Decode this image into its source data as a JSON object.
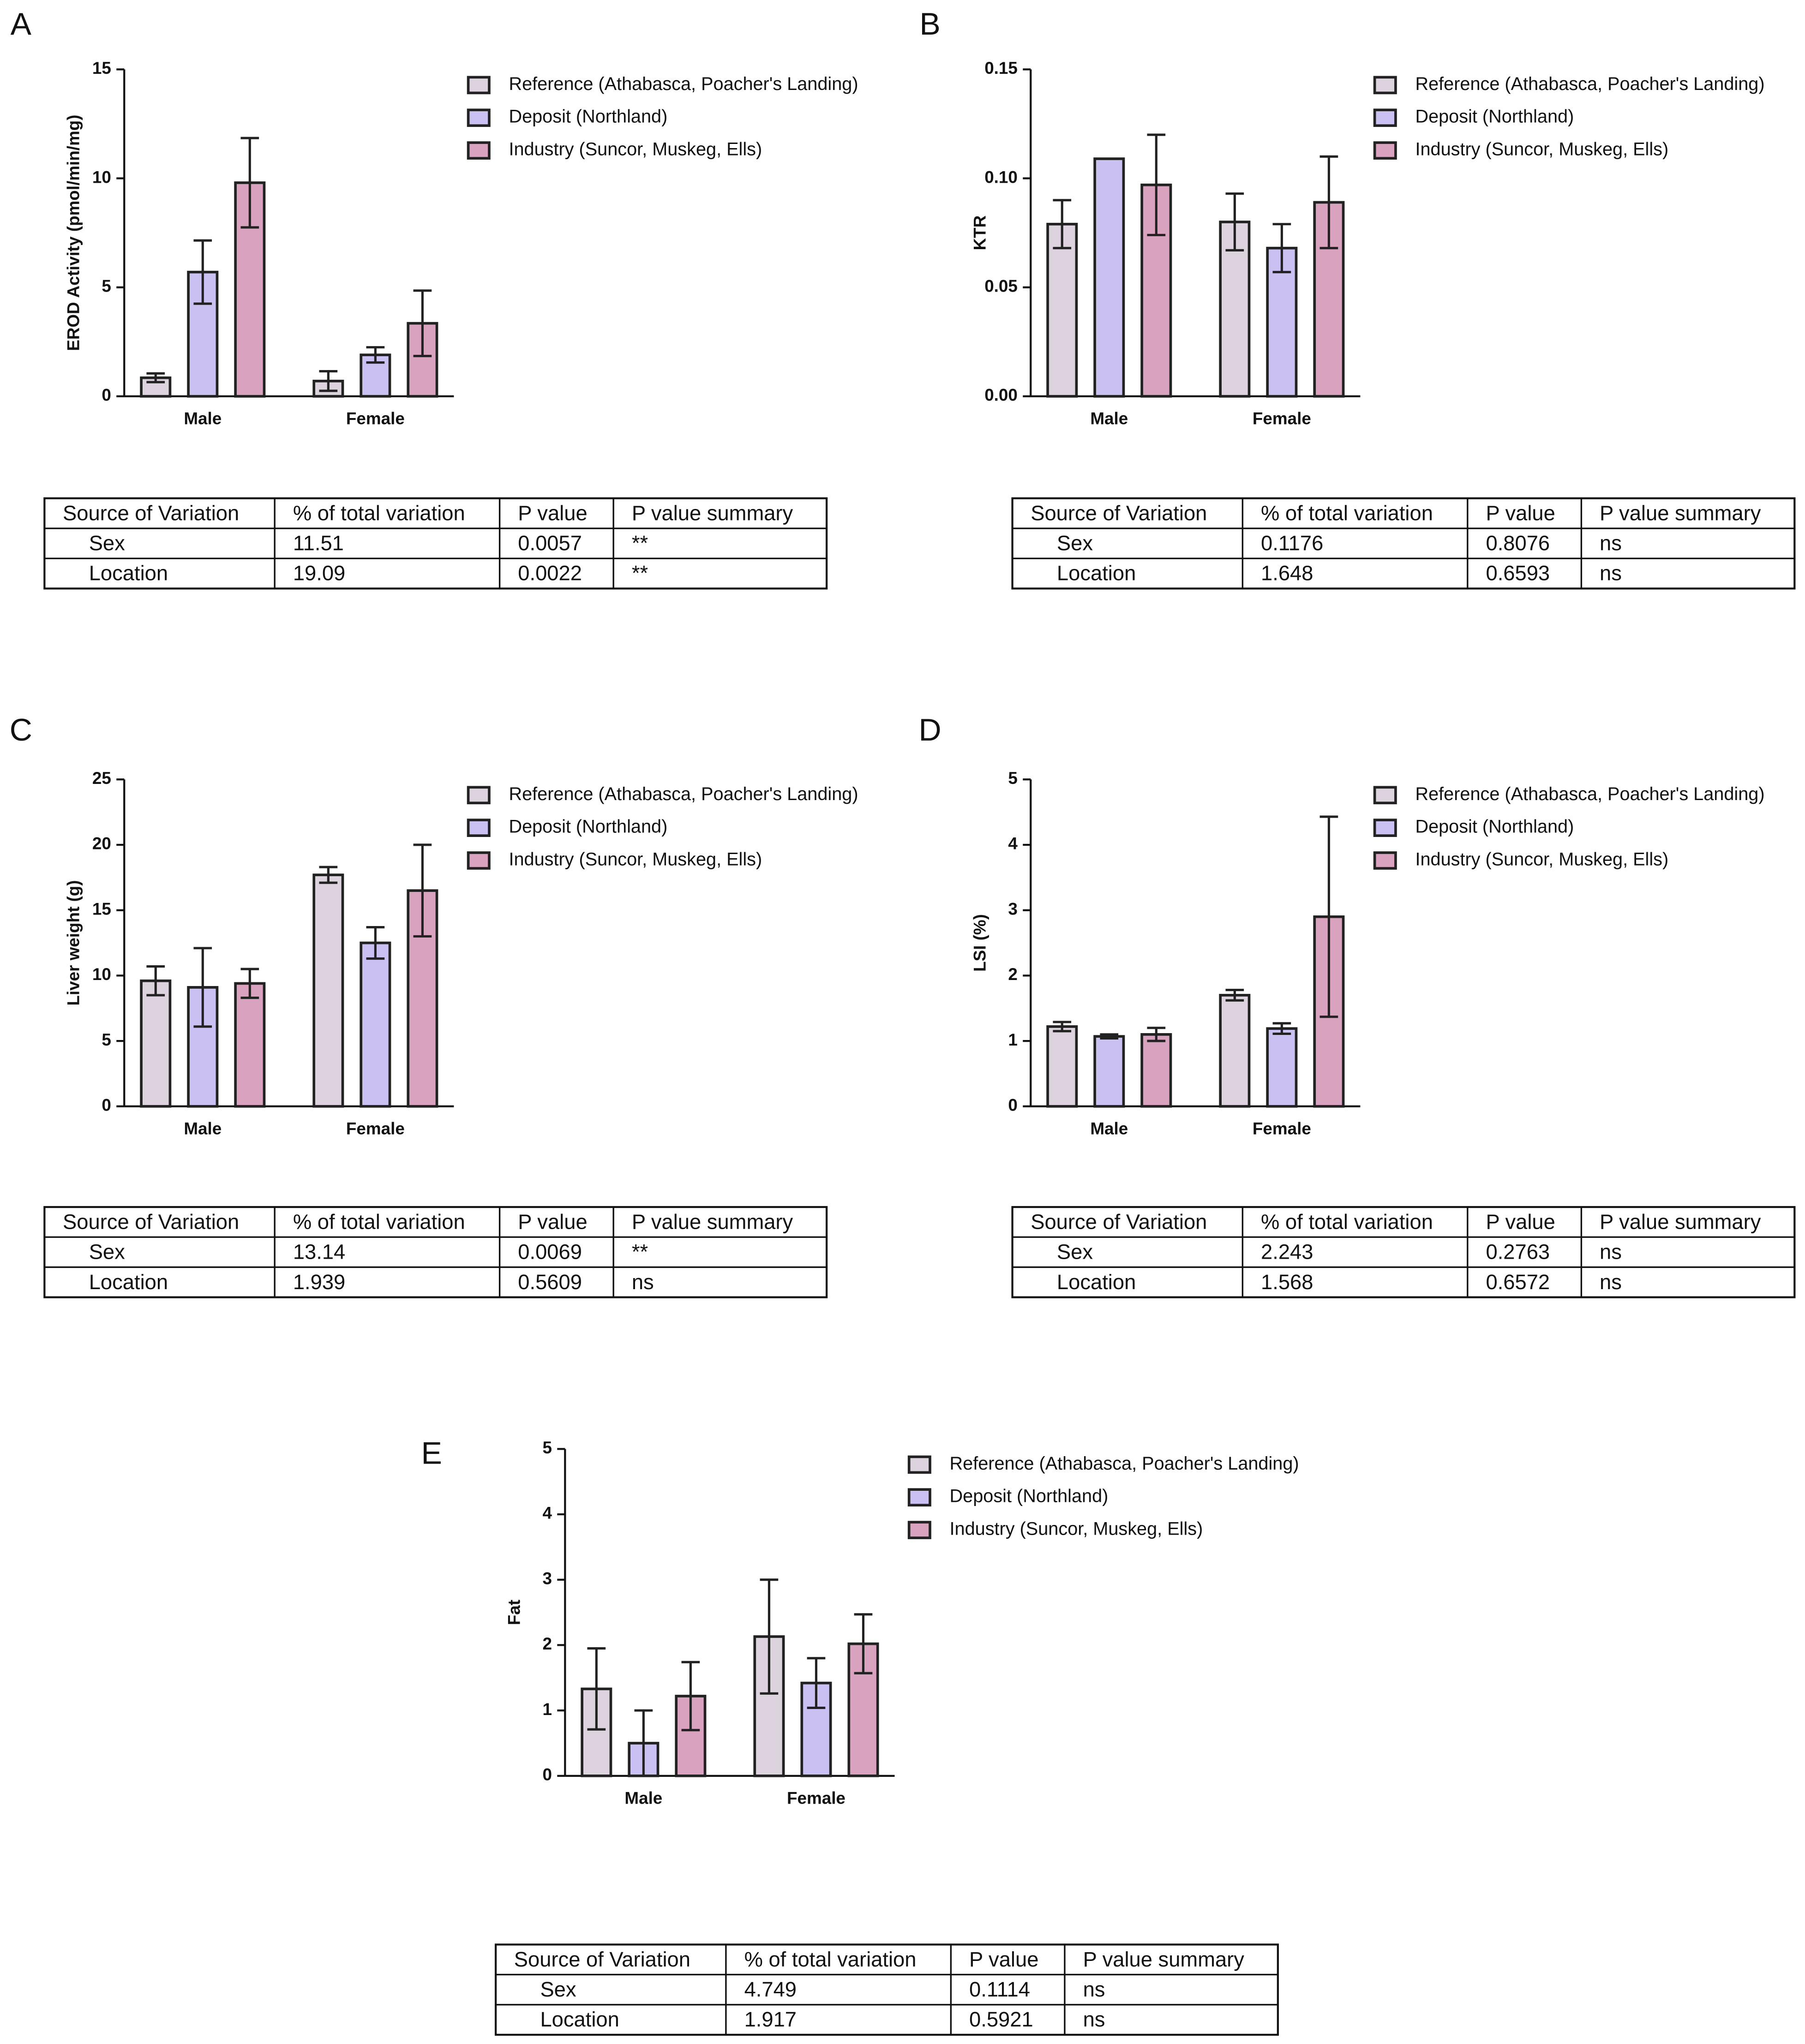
{
  "chart_data": [
    {
      "type": "bar",
      "label": "A",
      "ylabel": "EROD Activity (pmol/min/mg)",
      "categories": [
        "Male",
        "Female"
      ],
      "ylim": [
        0,
        15
      ],
      "yticks": [
        0,
        5,
        10,
        15
      ],
      "series": [
        {
          "name": "Reference (Athabasca, Poacher's Landing)",
          "color": "#ddd3df",
          "values": [
            0.85,
            0.7
          ],
          "errors": [
            0.2,
            0.45
          ]
        },
        {
          "name": "Deposit (Northland)",
          "color": "#cbc0f2",
          "values": [
            5.7,
            1.9
          ],
          "errors": [
            1.45,
            0.35
          ]
        },
        {
          "name": "Industry (Suncor, Muskeg, Ells)",
          "color": "#d9a3c0",
          "values": [
            9.8,
            3.35
          ],
          "errors": [
            2.05,
            1.5
          ]
        }
      ]
    },
    {
      "type": "bar",
      "label": "B",
      "ylabel": "KTR",
      "categories": [
        "Male",
        "Female"
      ],
      "ylim": [
        0,
        0.15
      ],
      "yticks": [
        {
          "value": 0,
          "label": "0.00"
        },
        {
          "value": 0.05,
          "label": "0.05"
        },
        {
          "value": 0.1,
          "label": "0.10"
        },
        {
          "value": 0.15,
          "label": "0.15"
        }
      ],
      "series": [
        {
          "name": "Reference (Athabasca, Poacher's Landing)",
          "color": "#ddd3df",
          "values": [
            0.079,
            0.08
          ],
          "errors": [
            0.011,
            0.013
          ]
        },
        {
          "name": "Deposit (Northland)",
          "color": "#cbc0f2",
          "values": [
            0.109,
            0.068
          ],
          "errors": [
            0,
            0.011
          ]
        },
        {
          "name": "Industry (Suncor, Muskeg, Ells)",
          "color": "#d9a3c0",
          "values": [
            0.097,
            0.089
          ],
          "errors": [
            0.023,
            0.021
          ]
        }
      ]
    },
    {
      "type": "bar",
      "label": "C",
      "ylabel": "Liver weight (g)",
      "categories": [
        "Male",
        "Female"
      ],
      "ylim": [
        0,
        25
      ],
      "yticks": [
        0,
        5,
        10,
        15,
        20,
        25
      ],
      "series": [
        {
          "name": "Reference (Athabasca, Poacher's Landing)",
          "color": "#ddd3df",
          "values": [
            9.6,
            17.7
          ],
          "errors": [
            1.1,
            0.6
          ]
        },
        {
          "name": "Deposit (Northland)",
          "color": "#cbc0f2",
          "values": [
            9.1,
            12.5
          ],
          "errors": [
            3.0,
            1.2
          ]
        },
        {
          "name": "Industry (Suncor, Muskeg, Ells)",
          "color": "#d9a3c0",
          "values": [
            9.4,
            16.5
          ],
          "errors": [
            1.1,
            3.5
          ]
        }
      ]
    },
    {
      "type": "bar",
      "label": "D",
      "ylabel": "LSI (%)",
      "categories": [
        "Male",
        "Female"
      ],
      "ylim": [
        0,
        5
      ],
      "yticks": [
        0,
        1,
        2,
        3,
        4,
        5
      ],
      "series": [
        {
          "name": "Reference (Athabasca, Poacher's Landing)",
          "color": "#ddd3df",
          "values": [
            1.22,
            1.7
          ],
          "errors": [
            0.07,
            0.08
          ]
        },
        {
          "name": "Deposit (Northland)",
          "color": "#cbc0f2",
          "values": [
            1.07,
            1.19
          ],
          "errors": [
            0.03,
            0.08
          ]
        },
        {
          "name": "Industry (Suncor, Muskeg, Ells)",
          "color": "#d9a3c0",
          "values": [
            1.1,
            2.9
          ],
          "errors": [
            0.1,
            1.53
          ]
        }
      ]
    },
    {
      "type": "bar",
      "label": "E",
      "ylabel": "Fat",
      "categories": [
        "Male",
        "Female"
      ],
      "ylim": [
        0,
        5
      ],
      "yticks": [
        0,
        1,
        2,
        3,
        4,
        5
      ],
      "series": [
        {
          "name": "Reference (Athabasca, Poacher's Landing)",
          "color": "#ddd3df",
          "values": [
            1.33,
            2.13
          ],
          "errors": [
            0.62,
            0.87
          ]
        },
        {
          "name": "Deposit (Northland)",
          "color": "#cbc0f2",
          "values": [
            0.5,
            1.42
          ],
          "errors": [
            0.5,
            0.38
          ]
        },
        {
          "name": "Industry (Suncor, Muskeg, Ells)",
          "color": "#d9a3c0",
          "values": [
            1.22,
            2.02
          ],
          "errors": [
            0.52,
            0.45
          ]
        }
      ]
    }
  ],
  "tables": [
    {
      "header": [
        "Source of Variation",
        "% of total variation",
        "P value",
        "P value summary"
      ],
      "rows": [
        [
          "Sex",
          "11.51",
          "0.0057",
          "**"
        ],
        [
          "Location",
          "19.09",
          "0.0022",
          "**"
        ]
      ]
    },
    {
      "header": [
        "Source of Variation",
        "% of total variation",
        "P value",
        "P value summary"
      ],
      "rows": [
        [
          "Sex",
          "0.1176",
          "0.8076",
          "ns"
        ],
        [
          "Location",
          "1.648",
          "0.6593",
          "ns"
        ]
      ]
    },
    {
      "header": [
        "Source of Variation",
        "% of total variation",
        "P value",
        "P value summary"
      ],
      "rows": [
        [
          "Sex",
          "13.14",
          "0.0069",
          "**"
        ],
        [
          "Location",
          "1.939",
          "0.5609",
          "ns"
        ]
      ]
    },
    {
      "header": [
        "Source of Variation",
        "% of total variation",
        "P value",
        "P value summary"
      ],
      "rows": [
        [
          "Sex",
          "2.243",
          "0.2763",
          "ns"
        ],
        [
          "Location",
          "1.568",
          "0.6572",
          "ns"
        ]
      ]
    },
    {
      "header": [
        "Source of Variation",
        "% of total variation",
        "P value",
        "P value summary"
      ],
      "rows": [
        [
          "Sex",
          "4.749",
          "0.1114",
          "ns"
        ],
        [
          "Location",
          "1.917",
          "0.5921",
          "ns"
        ]
      ]
    }
  ]
}
